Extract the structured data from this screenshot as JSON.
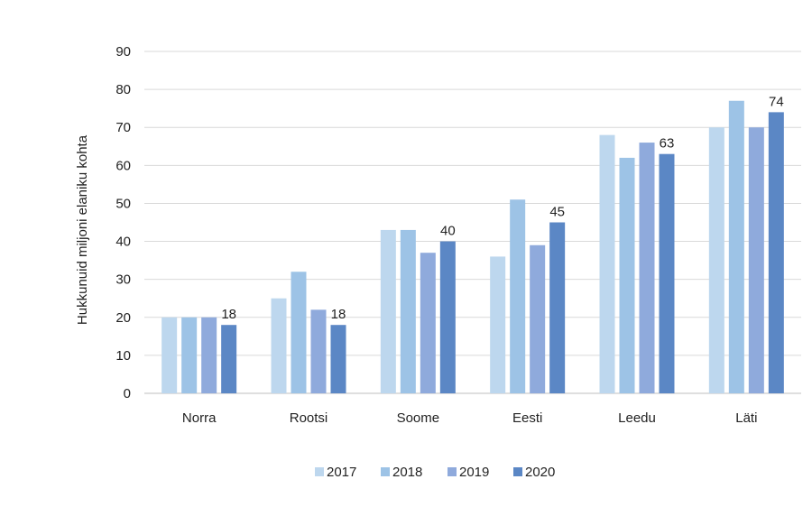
{
  "chart_data": {
    "type": "bar",
    "title": "",
    "xlabel": "",
    "ylabel": "Hukkunuid miljoni elaniku kohta",
    "ylim": [
      0,
      90
    ],
    "yticks": [
      0,
      10,
      20,
      30,
      40,
      50,
      60,
      70,
      80,
      90
    ],
    "grid": true,
    "legend_position": "bottom",
    "categories": [
      "Norra",
      "Rootsi",
      "Soome",
      "Eesti",
      "Leedu",
      "Läti"
    ],
    "series": [
      {
        "name": "2017",
        "color": "#bdd7ee",
        "values": [
          20,
          25,
          43,
          36,
          68,
          70
        ]
      },
      {
        "name": "2018",
        "color": "#9dc3e6",
        "values": [
          20,
          32,
          43,
          51,
          62,
          77
        ]
      },
      {
        "name": "2019",
        "color": "#8faadc",
        "values": [
          20,
          22,
          37,
          39,
          66,
          70
        ]
      },
      {
        "name": "2020",
        "color": "#5b87c5",
        "values": [
          18,
          18,
          40,
          45,
          63,
          74
        ]
      }
    ],
    "data_labels": {
      "series_index": 3,
      "values": [
        "18",
        "18",
        "40",
        "45",
        "63",
        "74"
      ]
    }
  }
}
